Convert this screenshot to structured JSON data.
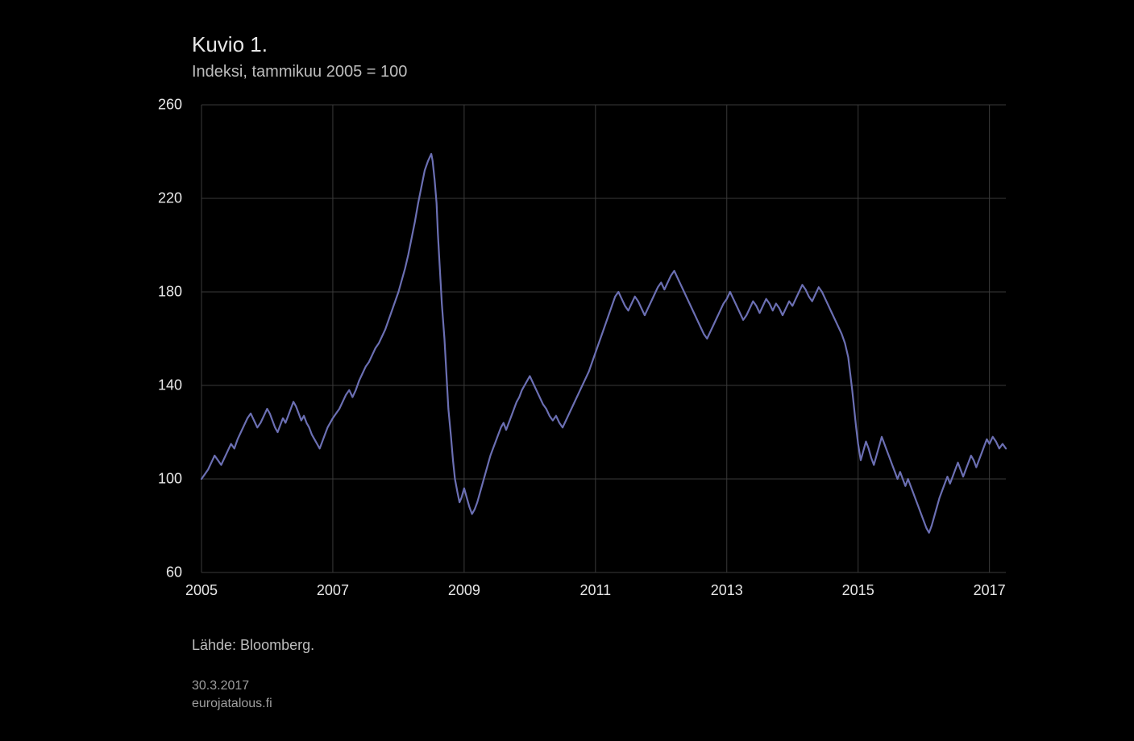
{
  "chart": {
    "type": "line",
    "title": "Kuvio 1.",
    "subtitle": "Indeksi, tammikuu 2005 = 100",
    "source": "Lähde: Bloomberg.",
    "date_stamp": "30.3.2017",
    "site_stamp": "eurojatalous.fi",
    "background_color": "#000000",
    "text_color": "#e8e8e8",
    "subtext_color": "#bdbdbd",
    "stamp_color": "#9e9e9e",
    "grid_color": "#3a3a3a",
    "line_color": "#6b6fb3",
    "line_width": 2.2,
    "title_fontsize": 26,
    "subtitle_fontsize": 20,
    "tick_fontsize": 18,
    "x": {
      "min": 2005,
      "max": 2017.25,
      "ticks": [
        2005,
        2007,
        2009,
        2011,
        2013,
        2015,
        2017
      ],
      "tick_labels": [
        "2005",
        "2007",
        "2009",
        "2011",
        "2013",
        "2015",
        "2017"
      ]
    },
    "y": {
      "min": 60,
      "max": 260,
      "ticks": [
        60,
        100,
        140,
        180,
        220,
        260
      ],
      "tick_labels": [
        "60",
        "100",
        "140",
        "180",
        "220",
        "260"
      ]
    },
    "series": [
      {
        "name": "index",
        "color": "#6b6fb3",
        "points": [
          [
            2005.0,
            100
          ],
          [
            2005.05,
            102
          ],
          [
            2005.1,
            104
          ],
          [
            2005.15,
            107
          ],
          [
            2005.2,
            110
          ],
          [
            2005.25,
            108
          ],
          [
            2005.3,
            106
          ],
          [
            2005.35,
            109
          ],
          [
            2005.4,
            112
          ],
          [
            2005.45,
            115
          ],
          [
            2005.5,
            113
          ],
          [
            2005.55,
            117
          ],
          [
            2005.6,
            120
          ],
          [
            2005.65,
            123
          ],
          [
            2005.7,
            126
          ],
          [
            2005.75,
            128
          ],
          [
            2005.8,
            125
          ],
          [
            2005.85,
            122
          ],
          [
            2005.9,
            124
          ],
          [
            2005.95,
            127
          ],
          [
            2006.0,
            130
          ],
          [
            2006.04,
            128
          ],
          [
            2006.08,
            125
          ],
          [
            2006.12,
            122
          ],
          [
            2006.16,
            120
          ],
          [
            2006.2,
            123
          ],
          [
            2006.24,
            126
          ],
          [
            2006.28,
            124
          ],
          [
            2006.32,
            127
          ],
          [
            2006.36,
            130
          ],
          [
            2006.4,
            133
          ],
          [
            2006.44,
            131
          ],
          [
            2006.48,
            128
          ],
          [
            2006.52,
            125
          ],
          [
            2006.56,
            127
          ],
          [
            2006.6,
            124
          ],
          [
            2006.64,
            122
          ],
          [
            2006.68,
            119
          ],
          [
            2006.72,
            117
          ],
          [
            2006.76,
            115
          ],
          [
            2006.8,
            113
          ],
          [
            2006.84,
            116
          ],
          [
            2006.88,
            119
          ],
          [
            2006.92,
            122
          ],
          [
            2006.96,
            124
          ],
          [
            2007.0,
            126
          ],
          [
            2007.05,
            128
          ],
          [
            2007.1,
            130
          ],
          [
            2007.15,
            133
          ],
          [
            2007.2,
            136
          ],
          [
            2007.25,
            138
          ],
          [
            2007.3,
            135
          ],
          [
            2007.35,
            138
          ],
          [
            2007.4,
            142
          ],
          [
            2007.45,
            145
          ],
          [
            2007.5,
            148
          ],
          [
            2007.55,
            150
          ],
          [
            2007.6,
            153
          ],
          [
            2007.65,
            156
          ],
          [
            2007.7,
            158
          ],
          [
            2007.75,
            161
          ],
          [
            2007.8,
            164
          ],
          [
            2007.85,
            168
          ],
          [
            2007.9,
            172
          ],
          [
            2007.95,
            176
          ],
          [
            2008.0,
            180
          ],
          [
            2008.05,
            185
          ],
          [
            2008.1,
            190
          ],
          [
            2008.15,
            196
          ],
          [
            2008.2,
            203
          ],
          [
            2008.25,
            210
          ],
          [
            2008.3,
            218
          ],
          [
            2008.35,
            225
          ],
          [
            2008.4,
            232
          ],
          [
            2008.45,
            236
          ],
          [
            2008.5,
            239
          ],
          [
            2008.52,
            236
          ],
          [
            2008.55,
            228
          ],
          [
            2008.58,
            218
          ],
          [
            2008.6,
            205
          ],
          [
            2008.63,
            190
          ],
          [
            2008.66,
            175
          ],
          [
            2008.7,
            160
          ],
          [
            2008.73,
            145
          ],
          [
            2008.76,
            130
          ],
          [
            2008.8,
            118
          ],
          [
            2008.83,
            108
          ],
          [
            2008.86,
            100
          ],
          [
            2008.9,
            94
          ],
          [
            2008.93,
            90
          ],
          [
            2008.96,
            92
          ],
          [
            2009.0,
            96
          ],
          [
            2009.04,
            92
          ],
          [
            2009.08,
            88
          ],
          [
            2009.12,
            85
          ],
          [
            2009.16,
            87
          ],
          [
            2009.2,
            90
          ],
          [
            2009.24,
            94
          ],
          [
            2009.28,
            98
          ],
          [
            2009.32,
            102
          ],
          [
            2009.36,
            106
          ],
          [
            2009.4,
            110
          ],
          [
            2009.44,
            113
          ],
          [
            2009.48,
            116
          ],
          [
            2009.52,
            119
          ],
          [
            2009.56,
            122
          ],
          [
            2009.6,
            124
          ],
          [
            2009.64,
            121
          ],
          [
            2009.68,
            124
          ],
          [
            2009.72,
            127
          ],
          [
            2009.76,
            130
          ],
          [
            2009.8,
            133
          ],
          [
            2009.84,
            135
          ],
          [
            2009.88,
            138
          ],
          [
            2009.92,
            140
          ],
          [
            2009.96,
            142
          ],
          [
            2010.0,
            144
          ],
          [
            2010.05,
            141
          ],
          [
            2010.1,
            138
          ],
          [
            2010.15,
            135
          ],
          [
            2010.2,
            132
          ],
          [
            2010.25,
            130
          ],
          [
            2010.3,
            127
          ],
          [
            2010.35,
            125
          ],
          [
            2010.4,
            127
          ],
          [
            2010.45,
            124
          ],
          [
            2010.5,
            122
          ],
          [
            2010.55,
            125
          ],
          [
            2010.6,
            128
          ],
          [
            2010.65,
            131
          ],
          [
            2010.7,
            134
          ],
          [
            2010.75,
            137
          ],
          [
            2010.8,
            140
          ],
          [
            2010.85,
            143
          ],
          [
            2010.9,
            146
          ],
          [
            2010.95,
            150
          ],
          [
            2011.0,
            154
          ],
          [
            2011.05,
            158
          ],
          [
            2011.1,
            162
          ],
          [
            2011.15,
            166
          ],
          [
            2011.2,
            170
          ],
          [
            2011.25,
            174
          ],
          [
            2011.3,
            178
          ],
          [
            2011.35,
            180
          ],
          [
            2011.4,
            177
          ],
          [
            2011.45,
            174
          ],
          [
            2011.5,
            172
          ],
          [
            2011.55,
            175
          ],
          [
            2011.6,
            178
          ],
          [
            2011.65,
            176
          ],
          [
            2011.7,
            173
          ],
          [
            2011.75,
            170
          ],
          [
            2011.8,
            173
          ],
          [
            2011.85,
            176
          ],
          [
            2011.9,
            179
          ],
          [
            2011.95,
            182
          ],
          [
            2012.0,
            184
          ],
          [
            2012.05,
            181
          ],
          [
            2012.1,
            184
          ],
          [
            2012.15,
            187
          ],
          [
            2012.2,
            189
          ],
          [
            2012.25,
            186
          ],
          [
            2012.3,
            183
          ],
          [
            2012.35,
            180
          ],
          [
            2012.4,
            177
          ],
          [
            2012.45,
            174
          ],
          [
            2012.5,
            171
          ],
          [
            2012.55,
            168
          ],
          [
            2012.6,
            165
          ],
          [
            2012.65,
            162
          ],
          [
            2012.7,
            160
          ],
          [
            2012.75,
            163
          ],
          [
            2012.8,
            166
          ],
          [
            2012.85,
            169
          ],
          [
            2012.9,
            172
          ],
          [
            2012.95,
            175
          ],
          [
            2013.0,
            177
          ],
          [
            2013.05,
            180
          ],
          [
            2013.1,
            177
          ],
          [
            2013.15,
            174
          ],
          [
            2013.2,
            171
          ],
          [
            2013.25,
            168
          ],
          [
            2013.3,
            170
          ],
          [
            2013.35,
            173
          ],
          [
            2013.4,
            176
          ],
          [
            2013.45,
            174
          ],
          [
            2013.5,
            171
          ],
          [
            2013.55,
            174
          ],
          [
            2013.6,
            177
          ],
          [
            2013.65,
            175
          ],
          [
            2013.7,
            172
          ],
          [
            2013.75,
            175
          ],
          [
            2013.8,
            173
          ],
          [
            2013.85,
            170
          ],
          [
            2013.9,
            173
          ],
          [
            2013.95,
            176
          ],
          [
            2014.0,
            174
          ],
          [
            2014.05,
            177
          ],
          [
            2014.1,
            180
          ],
          [
            2014.15,
            183
          ],
          [
            2014.2,
            181
          ],
          [
            2014.25,
            178
          ],
          [
            2014.3,
            176
          ],
          [
            2014.35,
            179
          ],
          [
            2014.4,
            182
          ],
          [
            2014.45,
            180
          ],
          [
            2014.5,
            177
          ],
          [
            2014.55,
            174
          ],
          [
            2014.6,
            171
          ],
          [
            2014.65,
            168
          ],
          [
            2014.7,
            165
          ],
          [
            2014.75,
            162
          ],
          [
            2014.8,
            158
          ],
          [
            2014.85,
            152
          ],
          [
            2014.88,
            145
          ],
          [
            2014.91,
            138
          ],
          [
            2014.94,
            130
          ],
          [
            2014.97,
            122
          ],
          [
            2015.0,
            115
          ],
          [
            2015.04,
            108
          ],
          [
            2015.08,
            112
          ],
          [
            2015.12,
            116
          ],
          [
            2015.16,
            113
          ],
          [
            2015.2,
            109
          ],
          [
            2015.24,
            106
          ],
          [
            2015.28,
            110
          ],
          [
            2015.32,
            114
          ],
          [
            2015.36,
            118
          ],
          [
            2015.4,
            115
          ],
          [
            2015.44,
            112
          ],
          [
            2015.48,
            109
          ],
          [
            2015.52,
            106
          ],
          [
            2015.56,
            103
          ],
          [
            2015.6,
            100
          ],
          [
            2015.64,
            103
          ],
          [
            2015.68,
            100
          ],
          [
            2015.72,
            97
          ],
          [
            2015.76,
            100
          ],
          [
            2015.8,
            97
          ],
          [
            2015.84,
            94
          ],
          [
            2015.88,
            91
          ],
          [
            2015.92,
            88
          ],
          [
            2015.96,
            85
          ],
          [
            2016.0,
            82
          ],
          [
            2016.04,
            79
          ],
          [
            2016.08,
            77
          ],
          [
            2016.12,
            80
          ],
          [
            2016.16,
            84
          ],
          [
            2016.2,
            88
          ],
          [
            2016.24,
            92
          ],
          [
            2016.28,
            95
          ],
          [
            2016.32,
            98
          ],
          [
            2016.36,
            101
          ],
          [
            2016.4,
            98
          ],
          [
            2016.44,
            101
          ],
          [
            2016.48,
            104
          ],
          [
            2016.52,
            107
          ],
          [
            2016.56,
            104
          ],
          [
            2016.6,
            101
          ],
          [
            2016.64,
            104
          ],
          [
            2016.68,
            107
          ],
          [
            2016.72,
            110
          ],
          [
            2016.76,
            108
          ],
          [
            2016.8,
            105
          ],
          [
            2016.84,
            108
          ],
          [
            2016.88,
            111
          ],
          [
            2016.92,
            114
          ],
          [
            2016.96,
            117
          ],
          [
            2017.0,
            115
          ],
          [
            2017.05,
            118
          ],
          [
            2017.1,
            116
          ],
          [
            2017.15,
            113
          ],
          [
            2017.2,
            115
          ],
          [
            2017.25,
            113
          ]
        ]
      }
    ]
  }
}
